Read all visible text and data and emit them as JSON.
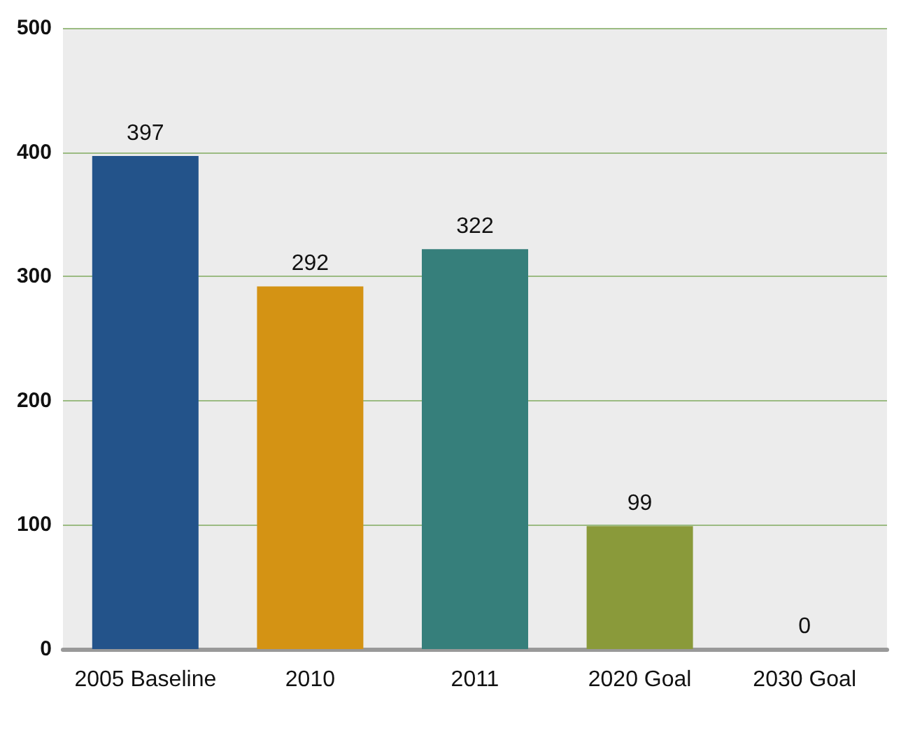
{
  "chart_data": {
    "type": "bar",
    "categories": [
      "2005 Baseline",
      "2010",
      "2011",
      "2020 Goal",
      "2030 Goal"
    ],
    "values": [
      397,
      292,
      322,
      99,
      0
    ],
    "colors": [
      "#23538a",
      "#d49314",
      "#367f7b",
      "#8a9a3a",
      "#3e4a80"
    ],
    "ylim": [
      0,
      500
    ],
    "yticks": [
      0,
      100,
      200,
      300,
      400,
      500
    ],
    "grid": "y",
    "data_labels": true
  }
}
